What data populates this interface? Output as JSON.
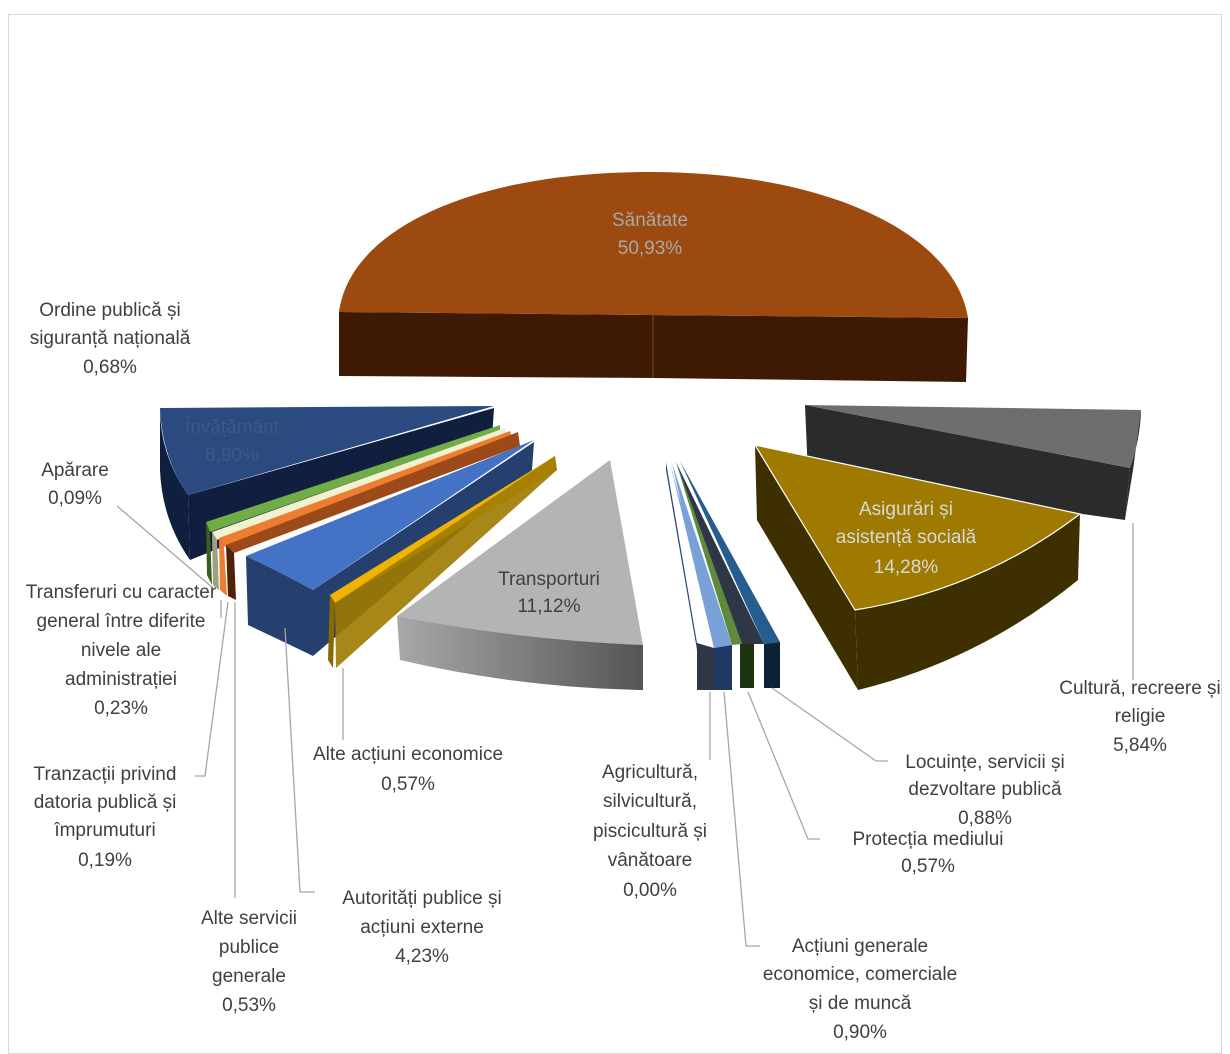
{
  "chart_data": {
    "type": "pie",
    "title": "",
    "exploded": true,
    "three_d": true,
    "legend": "none",
    "slices": [
      {
        "name": "Sănătate",
        "value_label": "50,93%",
        "value": 50.93,
        "color": "#9c4a0f",
        "dark": "#3e1a04"
      },
      {
        "name": "Cultură, recreere și religie",
        "value_label": "5,84%",
        "value": 5.84,
        "color": "#6e6e6e",
        "dark": "#2b2b2b"
      },
      {
        "name": "Asigurări și asistență socială",
        "value_label": "14,28%",
        "value": 14.28,
        "color": "#9e7a00",
        "dark": "#3d2f00"
      },
      {
        "name": "Locuințe, servicii și dezvoltare publică",
        "value_label": "0,88%",
        "value": 0.88,
        "color": "#265c8f",
        "dark": "#0c2236"
      },
      {
        "name": "Protecția mediului",
        "value_label": "0,57%",
        "value": 0.57,
        "color": "#5e8a3a",
        "dark": "#1e3312"
      },
      {
        "name": "Acțiuni generale economice, comerciale și de muncă",
        "value_label": "0,90%",
        "value": 0.9,
        "color": "#1f3864",
        "dark": "#0a1326"
      },
      {
        "name": "Agricultură, silvicultură, piscicultură și vânătoare",
        "value_label": "0,00%",
        "value": 0.0,
        "color": "#7aa0d8",
        "dark": "#2e4a78"
      },
      {
        "name": "Transporturi",
        "value_label": "11,12%",
        "value": 11.12,
        "color": "#b4b4b4",
        "dark": "#6c6c6c"
      },
      {
        "name": "Alte acțiuni economice",
        "value_label": "0,57%",
        "value": 0.57,
        "color": "#f0b400",
        "dark": "#8a6a00"
      },
      {
        "name": "Autorități publice și acțiuni externe",
        "value_label": "4,23%",
        "value": 4.23,
        "color": "#4472c4",
        "dark": "#253f6e"
      },
      {
        "name": "Alte servicii publice generale",
        "value_label": "0,53%",
        "value": 0.53,
        "color": "#9c4a1a",
        "dark": "#4e2208"
      },
      {
        "name": "Tranzacții privind datoria publică și împrumuturi",
        "value_label": "0,19%",
        "value": 0.19,
        "color": "#ed7d31",
        "dark": "#8a4010"
      },
      {
        "name": "Transferuri cu caracter general între diferite nivele ale administrației",
        "value_label": "0,23%",
        "value": 0.23,
        "color": "#f2f2d0",
        "dark": "#a0a080"
      },
      {
        "name": "Apărare",
        "value_label": "0,09%",
        "value": 0.09,
        "color": "#70ad47",
        "dark": "#3a6020"
      },
      {
        "name": "Învățământ",
        "value_label": "8,90%",
        "value": 8.9,
        "color": "#2a4a80",
        "dark": "#0f1f3d"
      },
      {
        "name": "Ordine publică și siguranță națională",
        "value_label": "0,68%",
        "value": 0.68,
        "color": "#4a6fa8",
        "dark": "#1c2f52"
      }
    ]
  },
  "labels": {
    "sanatate": {
      "line1": "Sănătate",
      "line2": "50,93%"
    },
    "asigurari": {
      "line1": "Asigurări și",
      "line2": "asistență socială",
      "line3": "14,28%"
    },
    "transporturi": {
      "line1": "Transporturi",
      "line2": "11,12%"
    },
    "invatamant": {
      "line1": "Învățământ",
      "line2": "8,90%"
    },
    "ordine": {
      "line1": "Ordine publică și",
      "line2": "siguranță națională",
      "line3": "0,68%"
    },
    "aparare": {
      "line1": "Apărare",
      "line2": "0,09%"
    },
    "transferuri": {
      "line1": "Transferuri cu caracter",
      "line2": "general între diferite",
      "line3": "nivele ale",
      "line4": "administrației",
      "line5": "0,23%"
    },
    "tranzactii": {
      "line1": "Tranzacții privind",
      "line2": "datoria publică și",
      "line3": "împrumuturi",
      "line4": "0,19%"
    },
    "alteservicii": {
      "line1": "Alte servicii",
      "line2": "publice",
      "line3": "generale",
      "line4": "0,53%"
    },
    "autoritati": {
      "line1": "Autorități publice și",
      "line2": "acțiuni externe",
      "line3": "4,23%"
    },
    "alteactiuni": {
      "line1": "Alte acțiuni economice",
      "line2": "0,57%"
    },
    "agricultura": {
      "line1": "Agricultură,",
      "line2": "silvicultură,",
      "line3": "piscicultură și",
      "line4": "vânătoare",
      "line5": "0,00%"
    },
    "actiuni": {
      "line1": "Acțiuni generale",
      "line2": "economice, comerciale",
      "line3": "și de muncă",
      "line4": "0,90%"
    },
    "protectia": {
      "line1": "Protecția mediului",
      "line2": "0,57%"
    },
    "locuinte": {
      "line1": "Locuințe, servicii și",
      "line2": "dezvoltare publică",
      "line3": "0,88%"
    },
    "cultura": {
      "line1": "Cultură, recreere și",
      "line2": "religie",
      "line3": "5,84%"
    }
  }
}
